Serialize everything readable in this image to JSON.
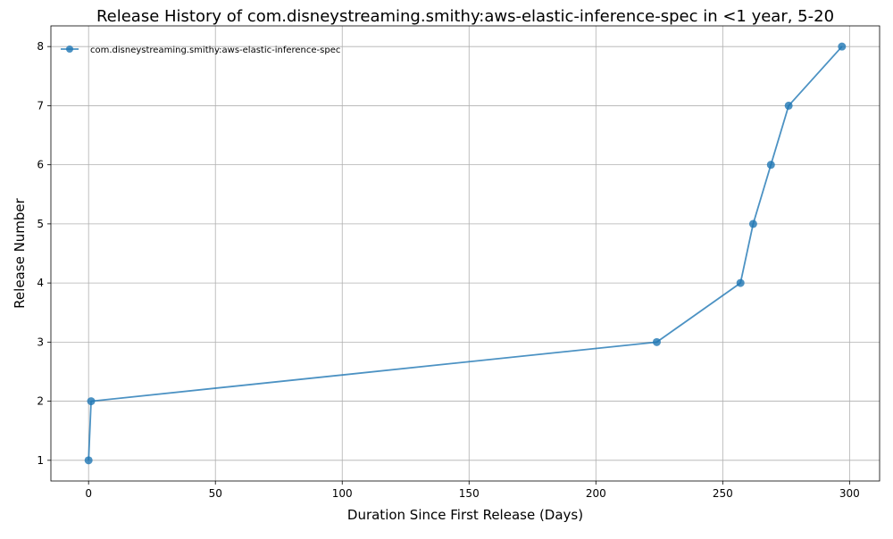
{
  "chart_data": {
    "type": "line",
    "title": "Release History of com.disneystreaming.smithy:aws-elastic-inference-spec in <1 year, 5-20",
    "xlabel": "Duration Since First Release (Days)",
    "ylabel": "Release Number",
    "xlim": [
      -14.85,
      311.85
    ],
    "ylim": [
      0.65,
      8.35
    ],
    "xticks": [
      0,
      50,
      100,
      150,
      200,
      250,
      300
    ],
    "yticks": [
      1,
      2,
      3,
      4,
      5,
      6,
      7,
      8
    ],
    "grid": true,
    "legend_position": "top-left",
    "series": [
      {
        "name": "com.disneystreaming.smithy:aws-elastic-inference-spec",
        "color": "#1f77b4",
        "marker": "circle",
        "x": [
          0,
          1,
          224,
          257,
          262,
          269,
          276,
          297
        ],
        "y": [
          1,
          2,
          3,
          4,
          5,
          6,
          7,
          8
        ]
      }
    ]
  }
}
